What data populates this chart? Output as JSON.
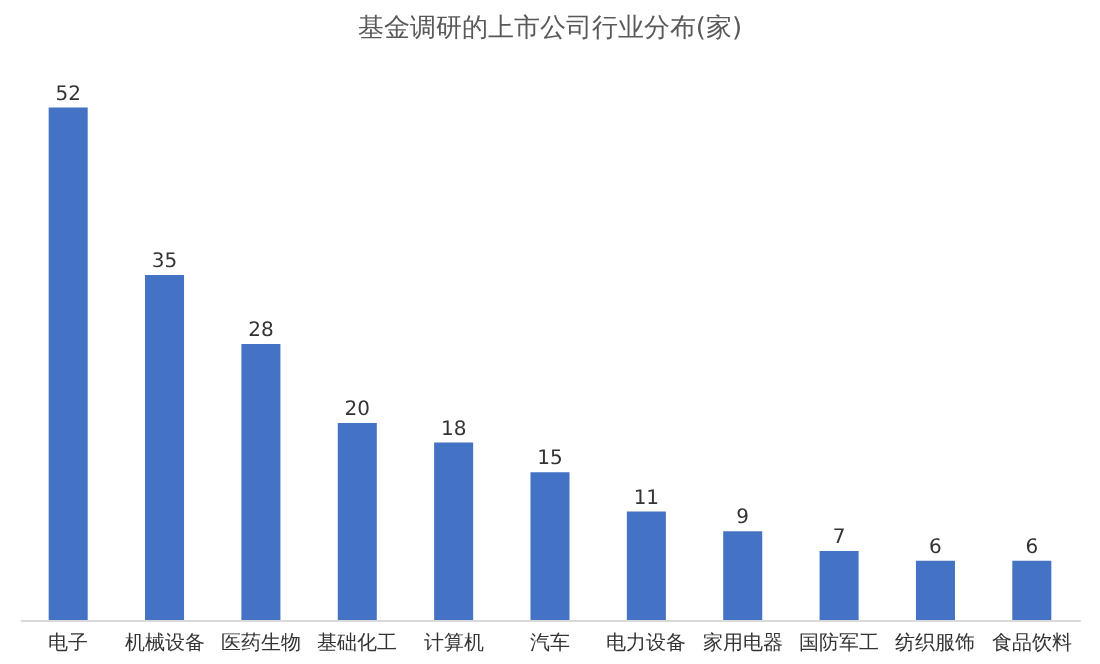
{
  "chart_data": {
    "type": "bar",
    "title": "基金调研的上市公司行业分布(家)",
    "categories": [
      "电子",
      "机械设备",
      "医药生物",
      "基础化工",
      "计算机",
      "汽车",
      "电力设备",
      "家用电器",
      "国防军工",
      "纺织服饰",
      "食品饮料"
    ],
    "values": [
      52,
      35,
      28,
      20,
      18,
      15,
      11,
      9,
      7,
      6,
      6
    ],
    "color": "#4472c4",
    "data_labels": true
  }
}
